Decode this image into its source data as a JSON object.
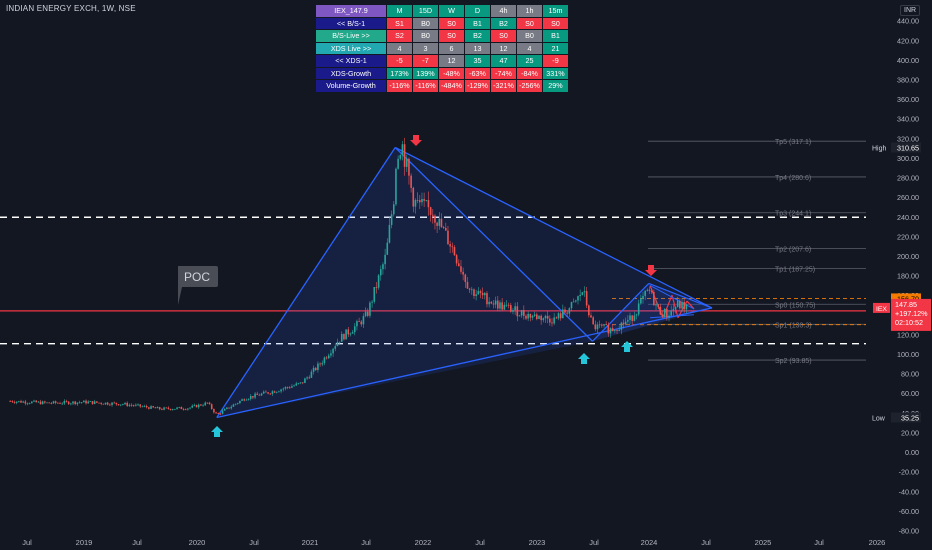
{
  "title": "INDIAN ENERGY EXCH, 1W, NSE",
  "currency": "INR",
  "colors": {
    "background": "#131722",
    "up": "#26a69a",
    "down": "#ef5350",
    "pattern": "#2962ff",
    "poc": "#f23645"
  },
  "table": {
    "header": [
      "IEX_147.9",
      "M",
      "15D",
      "W",
      "D",
      "4h",
      "1h",
      "15m"
    ],
    "rows": [
      {
        "label": "<< B/S-1",
        "label_color": "#1a1a8a",
        "cells": [
          {
            "v": "S1",
            "c": "#f23645"
          },
          {
            "v": "B0",
            "c": "#787b86"
          },
          {
            "v": "S0",
            "c": "#f23645"
          },
          {
            "v": "B1",
            "c": "#089981"
          },
          {
            "v": "B2",
            "c": "#089981"
          },
          {
            "v": "S0",
            "c": "#f23645"
          },
          {
            "v": "S0",
            "c": "#f23645"
          }
        ]
      },
      {
        "label": "B/S-Live >>",
        "label_color": "#22a88a",
        "cells": [
          {
            "v": "S2",
            "c": "#f23645"
          },
          {
            "v": "B0",
            "c": "#787b86"
          },
          {
            "v": "S0",
            "c": "#f23645"
          },
          {
            "v": "B2",
            "c": "#089981"
          },
          {
            "v": "S0",
            "c": "#f23645"
          },
          {
            "v": "B0",
            "c": "#787b86"
          },
          {
            "v": "B1",
            "c": "#089981"
          }
        ]
      },
      {
        "label": "XDS Live >>",
        "label_color": "#22a8b0",
        "cells": [
          {
            "v": "4",
            "c": "#787b86"
          },
          {
            "v": "3",
            "c": "#787b86"
          },
          {
            "v": "6",
            "c": "#787b86"
          },
          {
            "v": "13",
            "c": "#787b86"
          },
          {
            "v": "12",
            "c": "#787b86"
          },
          {
            "v": "4",
            "c": "#787b86"
          },
          {
            "v": "21",
            "c": "#089981"
          }
        ]
      },
      {
        "label": "<< XDS-1",
        "label_color": "#1a1a8a",
        "cells": [
          {
            "v": "-5",
            "c": "#f23645"
          },
          {
            "v": "-7",
            "c": "#f23645"
          },
          {
            "v": "12",
            "c": "#787b86"
          },
          {
            "v": "35",
            "c": "#089981"
          },
          {
            "v": "47",
            "c": "#089981"
          },
          {
            "v": "25",
            "c": "#089981"
          },
          {
            "v": "-9",
            "c": "#f23645"
          }
        ]
      },
      {
        "label": "XDS-Growth",
        "label_color": "#1a1a8a",
        "cells": [
          {
            "v": "173%",
            "c": "#089981"
          },
          {
            "v": "139%",
            "c": "#089981"
          },
          {
            "v": "-48%",
            "c": "#f23645"
          },
          {
            "v": "-63%",
            "c": "#f23645"
          },
          {
            "v": "-74%",
            "c": "#f23645"
          },
          {
            "v": "-84%",
            "c": "#f23645"
          },
          {
            "v": "331%",
            "c": "#089981"
          }
        ]
      },
      {
        "label": "Volume-Growth",
        "label_color": "#1a1a8a",
        "cells": [
          {
            "v": "-116%",
            "c": "#f23645"
          },
          {
            "v": "-116%",
            "c": "#f23645"
          },
          {
            "v": "-484%",
            "c": "#f23645"
          },
          {
            "v": "-129%",
            "c": "#f23645"
          },
          {
            "v": "-321%",
            "c": "#f23645"
          },
          {
            "v": "-256%",
            "c": "#f23645"
          },
          {
            "v": "29%",
            "c": "#089981"
          }
        ]
      }
    ]
  },
  "chart_data": {
    "type": "candlestick",
    "x_ticks": [
      "Jul",
      "2019",
      "Jul",
      "2020",
      "Jul",
      "2021",
      "Jul",
      "2022",
      "Jul",
      "2023",
      "Jul",
      "2024",
      "Jul",
      "2025",
      "Jul",
      "2026"
    ],
    "y_ticks": [
      440,
      420,
      400,
      380,
      360,
      340,
      320,
      300,
      280,
      260,
      240,
      220,
      200,
      180,
      160,
      140,
      120,
      100,
      80,
      60,
      40,
      20,
      0,
      -20,
      -40,
      -60,
      -80
    ],
    "ylim": [
      -85,
      455
    ],
    "price_path": [
      [
        "2018-05",
        52
      ],
      [
        "2018-09",
        50
      ],
      [
        "2019-01",
        51
      ],
      [
        "2019-05",
        49
      ],
      [
        "2019-09",
        44
      ],
      [
        "2019-12",
        45
      ],
      [
        "2020-02",
        50
      ],
      [
        "2020-03",
        38
      ],
      [
        "2020-06",
        55
      ],
      [
        "2020-09",
        62
      ],
      [
        "2020-12",
        70
      ],
      [
        "2021-02",
        90
      ],
      [
        "2021-04",
        115
      ],
      [
        "2021-06",
        130
      ],
      [
        "2021-07",
        140
      ],
      [
        "2021-09",
        200
      ],
      [
        "2021-10",
        270
      ],
      [
        "2021-11",
        300
      ],
      [
        "2021-12",
        255
      ],
      [
        "2022-02",
        245
      ],
      [
        "2022-04",
        210
      ],
      [
        "2022-06",
        165
      ],
      [
        "2022-09",
        150
      ],
      [
        "2022-12",
        140
      ],
      [
        "2023-03",
        135
      ],
      [
        "2023-05",
        150
      ],
      [
        "2023-06",
        165
      ],
      [
        "2023-07",
        128
      ],
      [
        "2023-09",
        125
      ],
      [
        "2023-11",
        135
      ],
      [
        "2023-12",
        150
      ],
      [
        "2024-01",
        165
      ],
      [
        "2024-02",
        145
      ],
      [
        "2024-03",
        140
      ],
      [
        "2024-04",
        150
      ],
      [
        "2024-05",
        148
      ]
    ],
    "pattern_points": {
      "A": [
        "2020-03",
        35.25
      ],
      "B": [
        "2021-10",
        310.65
      ],
      "C": [
        "2023-07",
        113
      ],
      "D": [
        "2024-01",
        172
      ],
      "E": [
        "2024-06",
        148
      ]
    },
    "horizontal_levels": [
      {
        "label": "Tp5 (317.1)",
        "value": 317.1
      },
      {
        "label": "Tp4 (280.6)",
        "value": 280.6
      },
      {
        "label": "Tp3 (244.1)",
        "value": 244.1
      },
      {
        "label": "Tp2 (207.6)",
        "value": 207.6
      },
      {
        "label": "Tp1 (187.25)",
        "value": 187.25
      },
      {
        "label": "Sp0 (150.75)",
        "value": 150.75
      },
      {
        "label": "Sp1 (130.3)",
        "value": 130.3
      },
      {
        "label": "Sp2 (93.85)",
        "value": 93.85
      }
    ],
    "dashed_levels": [
      239.5,
      110.5
    ],
    "dashed_levels_orange": [
      156.7,
      129.95
    ],
    "poc_line": 144,
    "poc_label": "POC",
    "price_labels": [
      {
        "text": "High",
        "value": "310.65",
        "y": 310.65,
        "color": "#131722"
      },
      {
        "text": "Low",
        "value": "35.25",
        "y": 35.25,
        "color": "#131722"
      },
      {
        "text": "",
        "value": "156.70",
        "y": 156.7,
        "color": "#f57c00"
      },
      {
        "text": "",
        "value": "129.95",
        "y": 129.95,
        "color": "#f57c00"
      }
    ],
    "current_price": {
      "symbol": "IEX",
      "price": "147.85",
      "change": "+197.12%",
      "countdown": "02:10:52",
      "y": 146
    }
  }
}
